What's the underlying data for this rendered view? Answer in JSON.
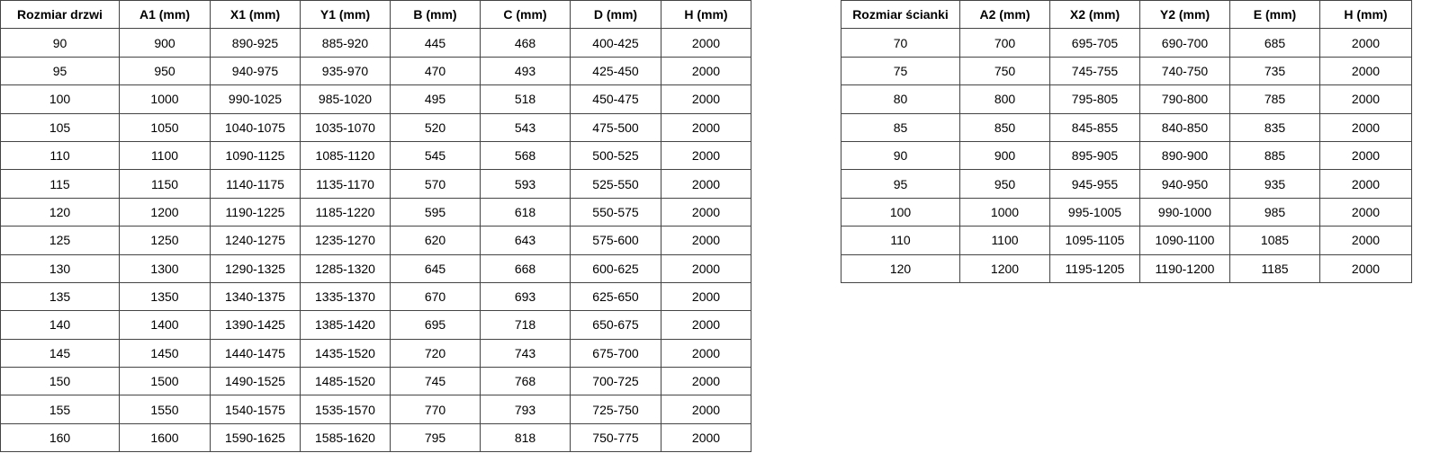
{
  "door_table": {
    "headers": [
      "Rozmiar drzwi",
      "A1 (mm)",
      "X1 (mm)",
      "Y1 (mm)",
      "B (mm)",
      "C (mm)",
      "D (mm)",
      "H (mm)"
    ],
    "rows": [
      [
        "90",
        "900",
        "890-925",
        "885-920",
        "445",
        "468",
        "400-425",
        "2000"
      ],
      [
        "95",
        "950",
        "940-975",
        "935-970",
        "470",
        "493",
        "425-450",
        "2000"
      ],
      [
        "100",
        "1000",
        "990-1025",
        "985-1020",
        "495",
        "518",
        "450-475",
        "2000"
      ],
      [
        "105",
        "1050",
        "1040-1075",
        "1035-1070",
        "520",
        "543",
        "475-500",
        "2000"
      ],
      [
        "110",
        "1100",
        "1090-1125",
        "1085-1120",
        "545",
        "568",
        "500-525",
        "2000"
      ],
      [
        "115",
        "1150",
        "1140-1175",
        "1135-1170",
        "570",
        "593",
        "525-550",
        "2000"
      ],
      [
        "120",
        "1200",
        "1190-1225",
        "1185-1220",
        "595",
        "618",
        "550-575",
        "2000"
      ],
      [
        "125",
        "1250",
        "1240-1275",
        "1235-1270",
        "620",
        "643",
        "575-600",
        "2000"
      ],
      [
        "130",
        "1300",
        "1290-1325",
        "1285-1320",
        "645",
        "668",
        "600-625",
        "2000"
      ],
      [
        "135",
        "1350",
        "1340-1375",
        "1335-1370",
        "670",
        "693",
        "625-650",
        "2000"
      ],
      [
        "140",
        "1400",
        "1390-1425",
        "1385-1420",
        "695",
        "718",
        "650-675",
        "2000"
      ],
      [
        "145",
        "1450",
        "1440-1475",
        "1435-1520",
        "720",
        "743",
        "675-700",
        "2000"
      ],
      [
        "150",
        "1500",
        "1490-1525",
        "1485-1520",
        "745",
        "768",
        "700-725",
        "2000"
      ],
      [
        "155",
        "1550",
        "1540-1575",
        "1535-1570",
        "770",
        "793",
        "725-750",
        "2000"
      ],
      [
        "160",
        "1600",
        "1590-1625",
        "1585-1620",
        "795",
        "818",
        "750-775",
        "2000"
      ]
    ]
  },
  "wall_table": {
    "headers": [
      "Rozmiar ścianki",
      "A2 (mm)",
      "X2 (mm)",
      "Y2 (mm)",
      "E (mm)",
      "H (mm)"
    ],
    "rows": [
      [
        "70",
        "700",
        "695-705",
        "690-700",
        "685",
        "2000"
      ],
      [
        "75",
        "750",
        "745-755",
        "740-750",
        "735",
        "2000"
      ],
      [
        "80",
        "800",
        "795-805",
        "790-800",
        "785",
        "2000"
      ],
      [
        "85",
        "850",
        "845-855",
        "840-850",
        "835",
        "2000"
      ],
      [
        "90",
        "900",
        "895-905",
        "890-900",
        "885",
        "2000"
      ],
      [
        "95",
        "950",
        "945-955",
        "940-950",
        "935",
        "2000"
      ],
      [
        "100",
        "1000",
        "995-1005",
        "990-1000",
        "985",
        "2000"
      ],
      [
        "110",
        "1100",
        "1095-1105",
        "1090-1100",
        "1085",
        "2000"
      ],
      [
        "120",
        "1200",
        "1195-1205",
        "1190-1200",
        "1185",
        "2000"
      ]
    ]
  }
}
